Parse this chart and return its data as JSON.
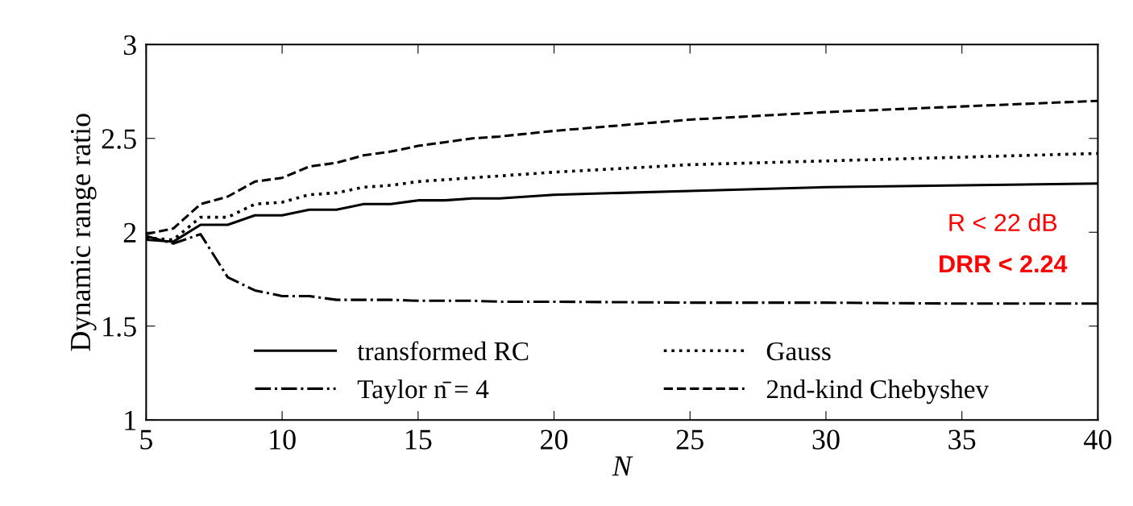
{
  "chart_data": {
    "type": "line",
    "xlabel": "N",
    "ylabel": "Dynamic range ratio",
    "x": [
      5,
      6,
      7,
      8,
      9,
      10,
      11,
      12,
      13,
      14,
      15,
      16,
      17,
      18,
      20,
      25,
      30,
      35,
      40
    ],
    "series": [
      {
        "name": "transformed RC",
        "color": "#000000",
        "line_style": "solid",
        "values": [
          1.96,
          1.95,
          2.04,
          2.04,
          2.09,
          2.09,
          2.12,
          2.12,
          2.15,
          2.15,
          2.17,
          2.17,
          2.18,
          2.18,
          2.2,
          2.22,
          2.24,
          2.25,
          2.26
        ]
      },
      {
        "name": "Gauss",
        "color": "#000000",
        "line_style": "dotted",
        "values": [
          1.97,
          1.96,
          2.08,
          2.08,
          2.15,
          2.16,
          2.2,
          2.21,
          2.24,
          2.25,
          2.27,
          2.28,
          2.29,
          2.3,
          2.32,
          2.36,
          2.38,
          2.4,
          2.42
        ]
      },
      {
        "name": "Taylor n̄ = 4",
        "color": "#000000",
        "line_style": "dashdot",
        "values": [
          1.98,
          1.94,
          1.99,
          1.76,
          1.69,
          1.66,
          1.66,
          1.64,
          1.64,
          1.64,
          1.635,
          1.635,
          1.635,
          1.63,
          1.63,
          1.625,
          1.625,
          1.62,
          1.62
        ]
      },
      {
        "name": "2nd-kind Chebyshev",
        "color": "#000000",
        "line_style": "dashed",
        "values": [
          1.99,
          2.02,
          2.15,
          2.19,
          2.27,
          2.29,
          2.35,
          2.37,
          2.41,
          2.43,
          2.46,
          2.48,
          2.5,
          2.51,
          2.54,
          2.6,
          2.64,
          2.67,
          2.7
        ]
      }
    ],
    "xlim": [
      5,
      40
    ],
    "xticks": [
      5,
      10,
      15,
      20,
      25,
      30,
      35,
      40
    ],
    "ylim": [
      1,
      3
    ],
    "yticks": [
      1,
      1.5,
      2,
      2.5,
      3
    ],
    "grid": false,
    "legend": "bottom",
    "marker": "none",
    "annotations": [
      "R < 22 dB",
      "DRR < 2.24"
    ]
  }
}
